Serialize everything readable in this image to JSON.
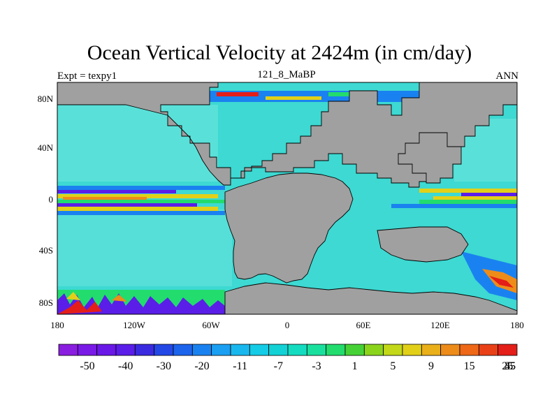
{
  "title": "Ocean Vertical Velocity at 2424m (in cm/day)",
  "subtitle_left": "Expt = texpy1",
  "subtitle_center": "121_8_MaBP",
  "subtitle_right": "ANN",
  "y_tick_labels": [
    "80N",
    "40N",
    "0",
    "40S",
    "80S"
  ],
  "x_tick_labels": [
    "180",
    "120W",
    "60W",
    "0",
    "60E",
    "120E",
    "180"
  ],
  "colorbar": {
    "labels": [
      "-50",
      "-40",
      "-30",
      "-20",
      "-11",
      "-7",
      "-3",
      "1",
      "5",
      "9",
      "15",
      "25",
      "35",
      "45"
    ],
    "colors": [
      "#8a1ee0",
      "#7a1ae6",
      "#6a18e8",
      "#5a1ee8",
      "#3a2ae0",
      "#2448e6",
      "#1c64ec",
      "#1a82f0",
      "#1a9ff2",
      "#18b8ee",
      "#14cce6",
      "#12d2d6",
      "#14dcc0",
      "#1ae09e",
      "#22dc6e",
      "#46d236",
      "#8ad41c",
      "#c2d818",
      "#e2d018",
      "#eab01a",
      "#ee8c1a",
      "#ee6818",
      "#ea4018",
      "#e41e18"
    ]
  },
  "map_colors": {
    "land": "#a0a0a0",
    "ocean": "#3dd9d2",
    "ocean_light": "#6de6de",
    "blue": "#1a82f0",
    "purple": "#5a1ee8",
    "red": "#e41e18",
    "orange": "#ee8c1a",
    "yellow": "#e2d018",
    "green": "#22dc6e"
  }
}
